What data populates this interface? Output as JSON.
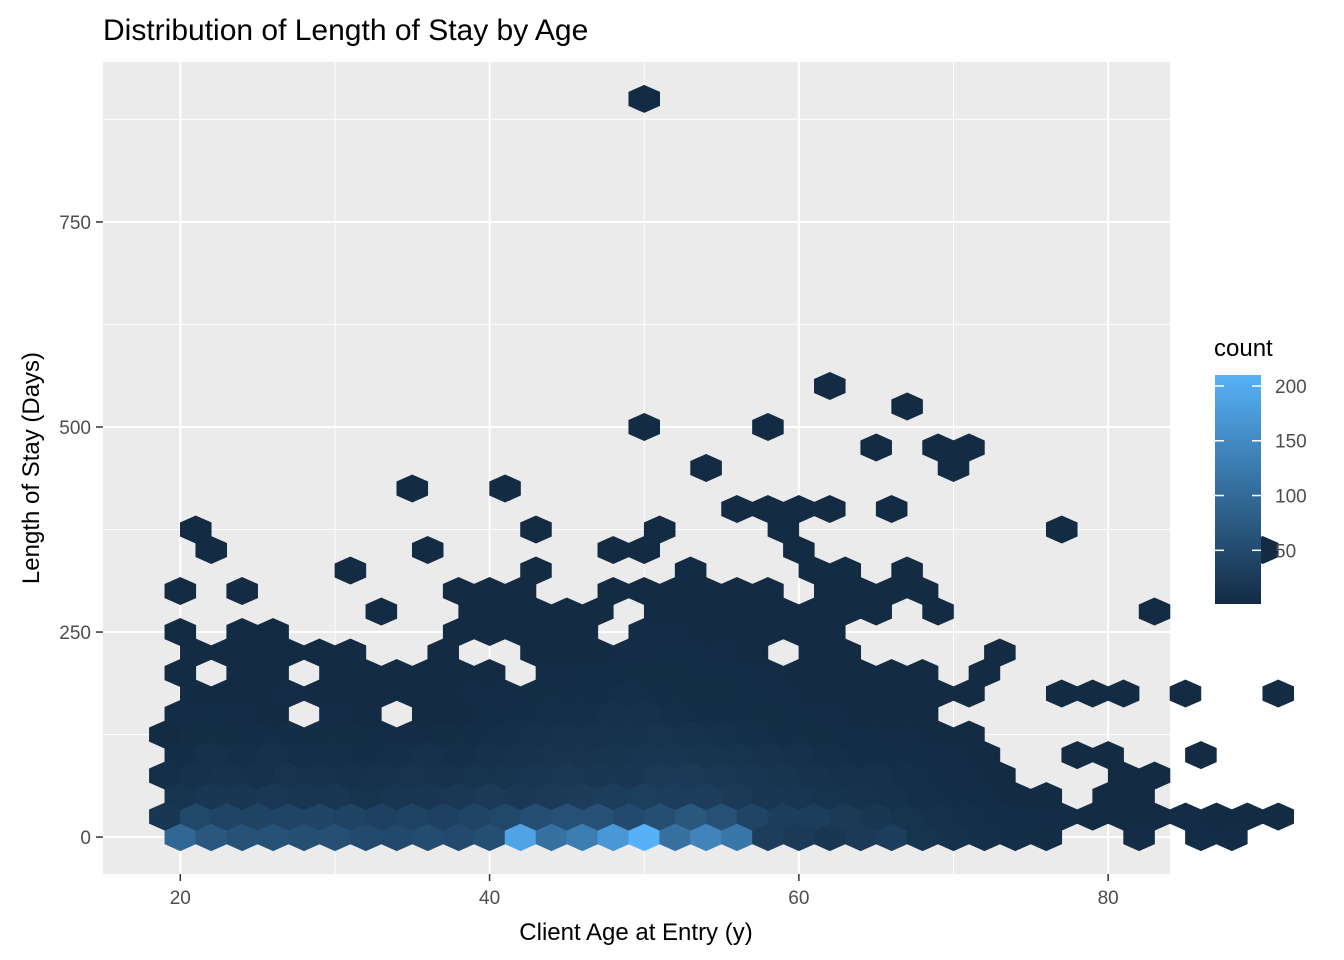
{
  "chart_data": {
    "type": "heatmap",
    "subtype": "hexbin",
    "title": "Distribution of Length of Stay by Age",
    "xlabel": "Client Age at Entry (y)",
    "ylabel": "Length of Stay (Days)",
    "xlim": [
      15,
      84
    ],
    "ylim": [
      -45,
      945
    ],
    "x_ticks": [
      20,
      40,
      60,
      80
    ],
    "y_ticks": [
      0,
      250,
      500,
      750
    ],
    "grid": true,
    "legend": {
      "title": "count",
      "position": "right",
      "ticks": [
        50,
        100,
        150,
        200
      ],
      "min": 1,
      "max": 210,
      "color_low": "#132B43",
      "color_high": "#56B1F7"
    },
    "hexbin": {
      "x_start": 20,
      "x_bin_width": 2.0,
      "y_start": 0,
      "y_row_step": 25,
      "odd_row_x_shift": -1.0,
      "rows": [
        {
          "y": 0,
          "counts": [
            95,
            70,
            62,
            60,
            55,
            58,
            50,
            48,
            52,
            50,
            55,
            190,
            110,
            130,
            170,
            210,
            110,
            140,
            120,
            30,
            25,
            20,
            25,
            30,
            15,
            10,
            8,
            6,
            5,
            0,
            0,
            3,
            0,
            4,
            3,
            0
          ]
        },
        {
          "y": 25,
          "counts": [
            20,
            45,
            40,
            38,
            40,
            42,
            38,
            36,
            38,
            36,
            40,
            45,
            55,
            60,
            60,
            50,
            55,
            70,
            60,
            40,
            30,
            30,
            25,
            20,
            15,
            10,
            8,
            6,
            4,
            3,
            2,
            2,
            2,
            3,
            2,
            1,
            1
          ]
        },
        {
          "y": 50,
          "counts": [
            15,
            20,
            20,
            22,
            18,
            20,
            15,
            18,
            20,
            22,
            25,
            22,
            25,
            28,
            30,
            32,
            30,
            30,
            25,
            20,
            18,
            15,
            12,
            10,
            8,
            6,
            4,
            2,
            1,
            0,
            2,
            1,
            0,
            0,
            0,
            0
          ]
        },
        {
          "y": 75,
          "counts": [
            8,
            10,
            12,
            10,
            14,
            12,
            10,
            12,
            14,
            12,
            15,
            15,
            18,
            22,
            20,
            20,
            25,
            24,
            22,
            18,
            16,
            12,
            10,
            10,
            8,
            6,
            3,
            1,
            0,
            0,
            0,
            1,
            1,
            0,
            0,
            0,
            0
          ]
        },
        {
          "y": 100,
          "counts": [
            6,
            10,
            8,
            10,
            8,
            8,
            6,
            8,
            10,
            8,
            10,
            12,
            14,
            14,
            16,
            18,
            18,
            16,
            15,
            12,
            10,
            8,
            6,
            6,
            4,
            3,
            1,
            0,
            0,
            1,
            1,
            0,
            0,
            1,
            0,
            0
          ]
        },
        {
          "y": 125,
          "counts": [
            2,
            5,
            5,
            6,
            6,
            5,
            5,
            4,
            3,
            5,
            6,
            8,
            10,
            12,
            12,
            12,
            14,
            12,
            10,
            8,
            6,
            5,
            4,
            4,
            3,
            2,
            2,
            0,
            0,
            0,
            0,
            0,
            0,
            0,
            0,
            0,
            0
          ]
        },
        {
          "y": 150,
          "counts": [
            3,
            4,
            3,
            2,
            0,
            3,
            2,
            0,
            2,
            2,
            4,
            6,
            8,
            8,
            10,
            10,
            8,
            6,
            6,
            5,
            4,
            3,
            2,
            2,
            1,
            0,
            0,
            0,
            0,
            0,
            0,
            0,
            0,
            0,
            0,
            0
          ]
        },
        {
          "y": 175,
          "counts": [
            0,
            1,
            2,
            2,
            3,
            2,
            2,
            1,
            2,
            2,
            3,
            3,
            5,
            6,
            6,
            8,
            6,
            5,
            5,
            4,
            3,
            2,
            2,
            1,
            1,
            1,
            1,
            0,
            0,
            1,
            1,
            1,
            0,
            1,
            0,
            0,
            1
          ]
        },
        {
          "y": 200,
          "counts": [
            1,
            0,
            1,
            2,
            0,
            2,
            1,
            1,
            1,
            1,
            2,
            0,
            3,
            4,
            4,
            5,
            5,
            4,
            4,
            3,
            2,
            2,
            1,
            1,
            1,
            0,
            1,
            0,
            0,
            0,
            0,
            0,
            0,
            0,
            0,
            0
          ]
        },
        {
          "y": 225,
          "counts": [
            0,
            1,
            1,
            1,
            2,
            1,
            1,
            0,
            0,
            1,
            0,
            0,
            1,
            2,
            2,
            3,
            4,
            4,
            3,
            2,
            0,
            2,
            1,
            0,
            0,
            0,
            0,
            1,
            0,
            0,
            0,
            0,
            0,
            0,
            0,
            0,
            0
          ]
        },
        {
          "y": 250,
          "counts": [
            1,
            0,
            1,
            1,
            0,
            0,
            0,
            0,
            0,
            1,
            1,
            2,
            2,
            2,
            0,
            3,
            3,
            2,
            2,
            1,
            1,
            1,
            0,
            0,
            0,
            0,
            0,
            0,
            0,
            0,
            0,
            0,
            0,
            0,
            0,
            0
          ]
        },
        {
          "y": 275,
          "counts": [
            0,
            0,
            0,
            0,
            0,
            0,
            0,
            1,
            0,
            0,
            1,
            1,
            1,
            2,
            2,
            0,
            2,
            2,
            2,
            1,
            1,
            1,
            1,
            1,
            0,
            1,
            0,
            0,
            0,
            0,
            0,
            0,
            1,
            0,
            0,
            0,
            0
          ]
        },
        {
          "y": 300,
          "counts": [
            1,
            0,
            1,
            0,
            0,
            0,
            0,
            0,
            0,
            1,
            1,
            1,
            0,
            0,
            1,
            1,
            1,
            1,
            1,
            1,
            0,
            1,
            1,
            1,
            1,
            0,
            0,
            0,
            0,
            0,
            0,
            0,
            0,
            0,
            0,
            0
          ]
        },
        {
          "y": 325,
          "counts": [
            0,
            0,
            0,
            0,
            0,
            0,
            1,
            0,
            0,
            0,
            0,
            0,
            1,
            0,
            0,
            0,
            0,
            1,
            0,
            0,
            0,
            1,
            1,
            0,
            1,
            0,
            0,
            0,
            0,
            0,
            0,
            0,
            0,
            0,
            0,
            0,
            0
          ]
        },
        {
          "y": 350,
          "counts": [
            0,
            1,
            0,
            0,
            0,
            0,
            0,
            0,
            1,
            0,
            0,
            0,
            0,
            0,
            1,
            1,
            0,
            0,
            0,
            0,
            1,
            0,
            0,
            0,
            0,
            0,
            0,
            0,
            0,
            0,
            0,
            0,
            0,
            0,
            0,
            1
          ]
        },
        {
          "y": 375,
          "counts": [
            0,
            1,
            0,
            0,
            0,
            0,
            0,
            0,
            0,
            0,
            0,
            0,
            1,
            0,
            0,
            0,
            1,
            0,
            0,
            0,
            1,
            0,
            0,
            0,
            0,
            0,
            0,
            0,
            0,
            1,
            0,
            0,
            0,
            0,
            0,
            0,
            0
          ]
        },
        {
          "y": 400,
          "counts": [
            0,
            0,
            0,
            0,
            0,
            0,
            0,
            0,
            0,
            0,
            0,
            0,
            0,
            0,
            0,
            0,
            0,
            0,
            1,
            1,
            1,
            1,
            0,
            1,
            0,
            0,
            0,
            0,
            0,
            0,
            0,
            0,
            0,
            0,
            0,
            0
          ]
        },
        {
          "y": 425,
          "counts": [
            0,
            0,
            0,
            0,
            0,
            0,
            0,
            0,
            1,
            0,
            0,
            1,
            0,
            0,
            0,
            0,
            0,
            0,
            0,
            0,
            0,
            0,
            0,
            0,
            0,
            0,
            0,
            0,
            0,
            0,
            0,
            0,
            0,
            0,
            0,
            0,
            0
          ]
        },
        {
          "y": 450,
          "counts": [
            0,
            0,
            0,
            0,
            0,
            0,
            0,
            0,
            0,
            0,
            0,
            0,
            0,
            0,
            0,
            0,
            0,
            1,
            0,
            0,
            0,
            0,
            0,
            0,
            0,
            1,
            0,
            0,
            0,
            0,
            0,
            0,
            0,
            0,
            0,
            0
          ]
        },
        {
          "y": 475,
          "counts": [
            0,
            0,
            0,
            0,
            0,
            0,
            0,
            0,
            0,
            0,
            0,
            0,
            0,
            0,
            0,
            0,
            0,
            0,
            0,
            0,
            0,
            0,
            0,
            1,
            0,
            1,
            1,
            0,
            0,
            0,
            0,
            0,
            0,
            0,
            0,
            0,
            0
          ]
        },
        {
          "y": 500,
          "counts": [
            0,
            0,
            0,
            0,
            0,
            0,
            0,
            0,
            0,
            0,
            0,
            0,
            0,
            0,
            0,
            1,
            0,
            0,
            0,
            1,
            0,
            0,
            0,
            0,
            0,
            0,
            0,
            0,
            0,
            0,
            0,
            0,
            0,
            0,
            0,
            0
          ]
        },
        {
          "y": 525,
          "counts": [
            0,
            0,
            0,
            0,
            0,
            0,
            0,
            0,
            0,
            0,
            0,
            0,
            0,
            0,
            0,
            0,
            0,
            0,
            0,
            0,
            0,
            0,
            0,
            0,
            1,
            0,
            0,
            0,
            0,
            0,
            0,
            0,
            0,
            0,
            0,
            0,
            0
          ]
        },
        {
          "y": 550,
          "counts": [
            0,
            0,
            0,
            0,
            0,
            0,
            0,
            0,
            0,
            0,
            0,
            0,
            0,
            0,
            0,
            0,
            0,
            0,
            0,
            0,
            0,
            1,
            0,
            0,
            0,
            0,
            0,
            0,
            0,
            0,
            0,
            0,
            0,
            0,
            0,
            0
          ]
        },
        {
          "y": 900,
          "counts": [
            0,
            0,
            0,
            0,
            0,
            0,
            0,
            0,
            0,
            0,
            0,
            0,
            0,
            0,
            0,
            1,
            0,
            0,
            0,
            0,
            0,
            0,
            0,
            0,
            0,
            0,
            0,
            0,
            0,
            0,
            0,
            0,
            0,
            0,
            0,
            0
          ]
        }
      ]
    }
  }
}
